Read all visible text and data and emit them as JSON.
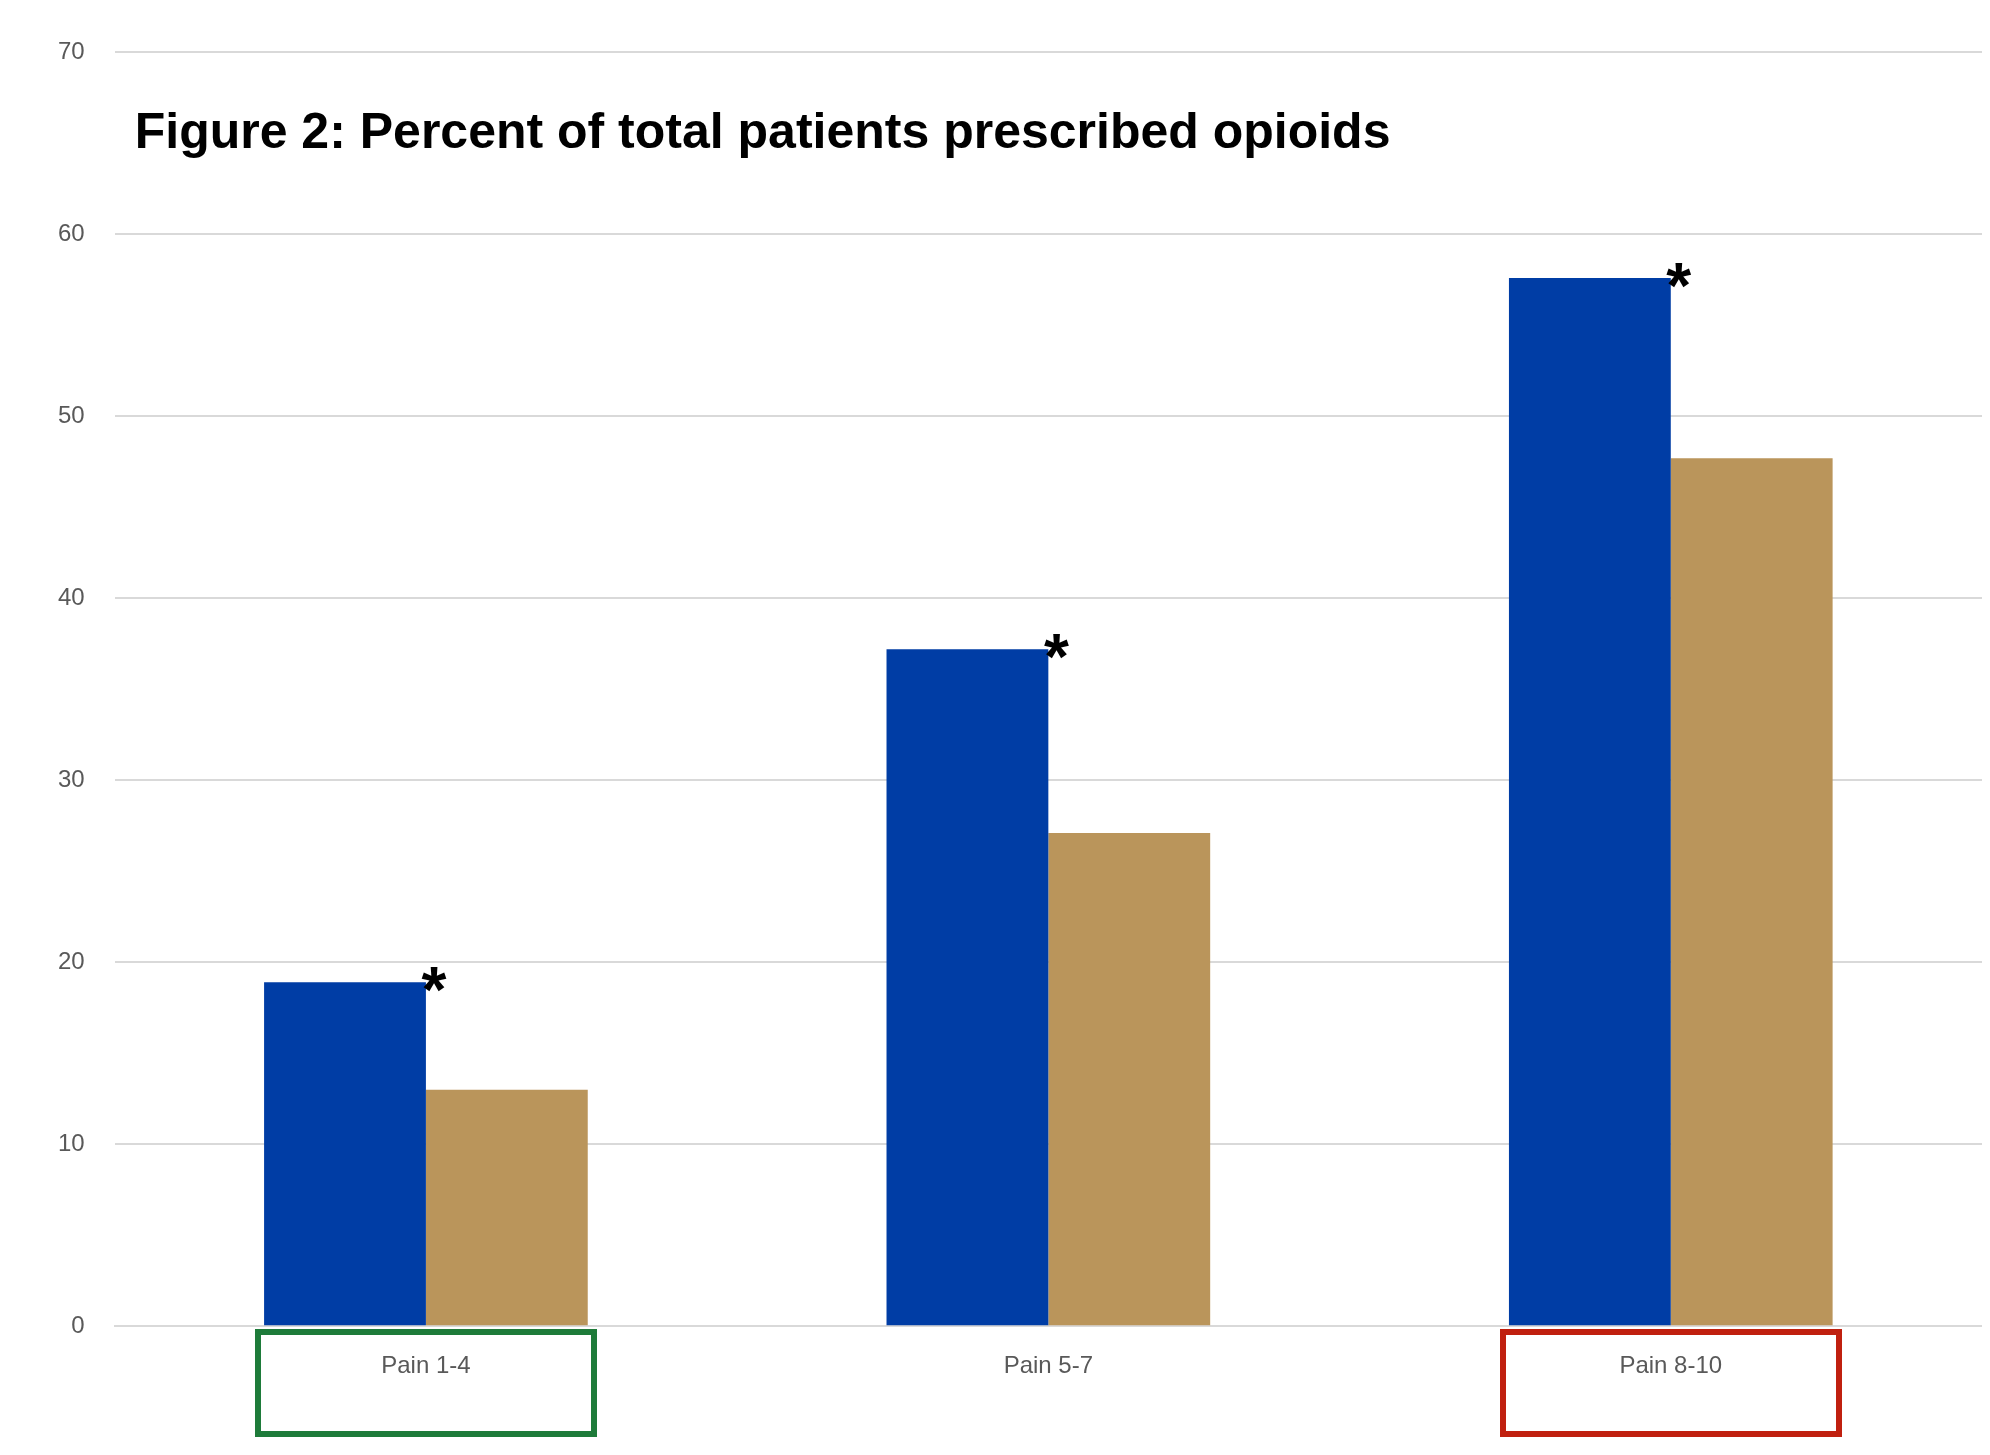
{
  "chart_data": {
    "type": "bar",
    "title": "Figure 2: Percent of total patients prescribed opioids",
    "categories": [
      "Pain 1-4",
      "Pain 5-7",
      "Pain 8-10"
    ],
    "series": [
      {
        "color": "#003da5",
        "values": [
          18.9,
          37.2,
          57.6
        ]
      },
      {
        "color": "#ba955b",
        "values": [
          13.0,
          27.1,
          47.7
        ]
      }
    ],
    "ylim": [
      0,
      70
    ],
    "yticks": [
      0,
      10,
      20,
      30,
      40,
      50,
      60,
      70
    ],
    "grid": "y",
    "legend": false,
    "annotations": [
      {
        "text": "*",
        "x": "Pain 1-4",
        "y": 18.9
      },
      {
        "text": "*",
        "x": "Pain 5-7",
        "y": 37.2
      },
      {
        "text": "*",
        "x": "Pain 8-10",
        "y": 57.6
      }
    ]
  }
}
